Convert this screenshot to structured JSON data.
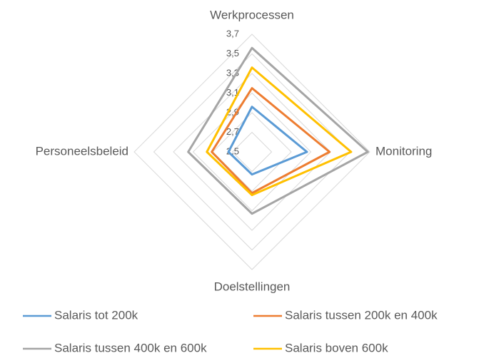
{
  "chart_data": {
    "type": "radar",
    "categories": [
      "Werkprocessen",
      "Monitoring",
      "Doelstellingen",
      "Personeelsbeleid"
    ],
    "ylim": [
      2.5,
      3.7
    ],
    "yticks": [
      {
        "value": 2.5,
        "label": "2,5"
      },
      {
        "value": 2.7,
        "label": "2,7"
      },
      {
        "value": 2.9,
        "label": "2,9"
      },
      {
        "value": 3.1,
        "label": "3,1"
      },
      {
        "value": 3.3,
        "label": "3,3"
      },
      {
        "value": 3.5,
        "label": "3,5"
      },
      {
        "value": 3.7,
        "label": "3,7"
      }
    ],
    "grid": true,
    "series": [
      {
        "name": "Salaris tot 200k",
        "color": "#5b9bd5",
        "values": [
          2.96,
          3.06,
          2.73,
          2.74
        ]
      },
      {
        "name": "Salaris tussen 200k en 400k",
        "color": "#ed7d31",
        "values": [
          3.15,
          3.29,
          2.92,
          2.91
        ]
      },
      {
        "name": "Salaris tussen 400k en 600k",
        "color": "#a5a5a5",
        "values": [
          3.56,
          3.68,
          3.13,
          3.15
        ]
      },
      {
        "name": "Salaris boven 600k",
        "color": "#ffc000",
        "values": [
          3.36,
          3.51,
          2.94,
          2.96
        ]
      }
    ]
  }
}
